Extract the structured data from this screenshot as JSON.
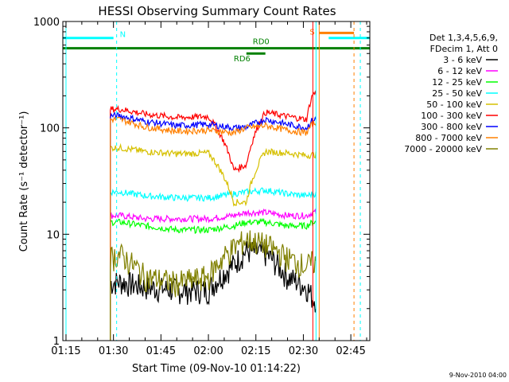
{
  "chart_data": {
    "type": "line",
    "title": "HESSI Observing Summary Count Rates",
    "xlabel": "Start Time (09-Nov-10 01:14:22)",
    "ylabel": "Count Rate (s⁻¹ detector⁻¹)",
    "yscale": "log",
    "ylim": [
      1,
      1000
    ],
    "xlim": [
      "01:14",
      "02:51"
    ],
    "x_ticks": [
      "01:15",
      "01:30",
      "01:45",
      "02:00",
      "02:15",
      "02:30",
      "02:45"
    ],
    "y_ticks": [
      "1",
      "10",
      "100",
      "1000"
    ],
    "grid": false,
    "legend_position": "right",
    "legend_header": [
      "Det 1,3,4,5,6,9,",
      "FDecim 1, Att 0"
    ],
    "series": [
      {
        "name": "3 - 6 keV",
        "color": "#000000",
        "x": [
          "01:29",
          "01:32",
          "01:40",
          "01:50",
          "02:00",
          "02:08",
          "02:12",
          "02:18",
          "02:25",
          "02:31",
          "02:33"
        ],
        "y": [
          3.5,
          3.6,
          3.2,
          3.0,
          3.0,
          5.2,
          7.0,
          6.6,
          4.0,
          3.2,
          2.5
        ]
      },
      {
        "name": "6 - 12 keV",
        "color": "#ff00ff",
        "x": [
          "01:29",
          "01:32",
          "01:40",
          "01:50",
          "02:00",
          "02:08",
          "02:12",
          "02:18",
          "02:25",
          "02:31",
          "02:33"
        ],
        "y": [
          15,
          15,
          14,
          14,
          14,
          15,
          16,
          16,
          15,
          15,
          16
        ]
      },
      {
        "name": "12 - 25 keV",
        "color": "#00ff00",
        "x": [
          "01:29",
          "01:32",
          "01:40",
          "01:50",
          "02:00",
          "02:08",
          "02:12",
          "02:18",
          "02:25",
          "02:31",
          "02:33"
        ],
        "y": [
          13,
          13,
          12,
          11,
          11,
          12,
          13,
          13,
          12,
          12,
          13
        ]
      },
      {
        "name": "25 - 50 keV",
        "color": "#00ffff",
        "x": [
          "01:29",
          "01:32",
          "01:40",
          "01:50",
          "02:00",
          "02:08",
          "02:12",
          "02:18",
          "02:25",
          "02:31",
          "02:33"
        ],
        "y": [
          25,
          25,
          23,
          22,
          22,
          24,
          25,
          26,
          24,
          23,
          24
        ]
      },
      {
        "name": "50 - 100 keV",
        "color": "#d6c000",
        "x": [
          "01:29",
          "01:32",
          "01:40",
          "01:50",
          "02:00",
          "02:08",
          "02:12",
          "02:18",
          "02:25",
          "02:31",
          "02:33"
        ],
        "y": [
          65,
          65,
          60,
          57,
          58,
          20,
          20,
          60,
          58,
          55,
          56
        ]
      },
      {
        "name": "100 - 300 keV",
        "color": "#ff0000",
        "x": [
          "01:29",
          "01:32",
          "01:40",
          "01:50",
          "02:00",
          "02:08",
          "02:12",
          "02:18",
          "02:25",
          "02:31",
          "02:33"
        ],
        "y": [
          150,
          150,
          135,
          125,
          128,
          40,
          45,
          140,
          128,
          120,
          210
        ]
      },
      {
        "name": "300 - 800 keV",
        "color": "#0000ff",
        "x": [
          "01:29",
          "01:32",
          "01:40",
          "01:50",
          "02:00",
          "02:08",
          "02:12",
          "02:18",
          "02:25",
          "02:31",
          "02:33"
        ],
        "y": [
          130,
          130,
          115,
          105,
          108,
          100,
          102,
          120,
          108,
          100,
          120
        ]
      },
      {
        "name": "800 - 7000 keV",
        "color": "#ff8000",
        "x": [
          "01:29",
          "01:32",
          "01:40",
          "01:50",
          "02:00",
          "02:08",
          "02:12",
          "02:18",
          "02:25",
          "02:31",
          "02:33"
        ],
        "y": [
          120,
          120,
          102,
          93,
          95,
          90,
          100,
          105,
          95,
          90,
          110
        ]
      },
      {
        "name": "7000 - 20000 keV",
        "color": "#808000",
        "x": [
          "01:29",
          "01:32",
          "01:40",
          "01:50",
          "02:00",
          "02:08",
          "02:12",
          "02:18",
          "02:25",
          "02:31",
          "02:33"
        ],
        "y": [
          6.0,
          6.5,
          4.0,
          3.5,
          4.0,
          7.5,
          9.0,
          8.0,
          6.0,
          5.0,
          5.5
        ]
      }
    ],
    "annotations": {
      "cyan_bar_label": "N",
      "orange_bar_label": "S",
      "green_bar_upper_label": "RD0",
      "green_bar_lower_label": "RD6"
    },
    "footer": "9-Nov-2010 04:00"
  }
}
